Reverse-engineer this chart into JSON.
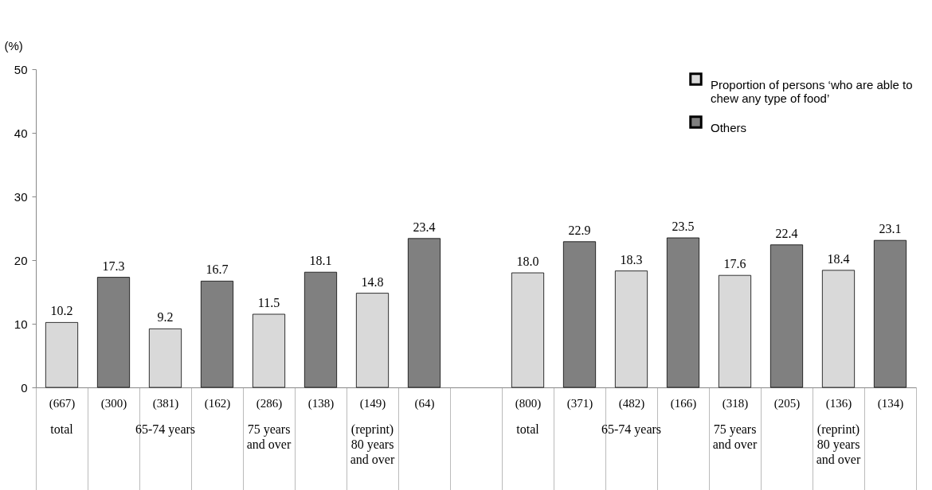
{
  "chart_data": {
    "type": "bar",
    "ylabel": "(%)",
    "categories": [
      "(667)",
      "(300)",
      "(381)",
      "(162)",
      "(286)",
      "(138)",
      "(149)",
      "(64)",
      null,
      "(800)",
      "(371)",
      "(482)",
      "(166)",
      "(318)",
      "(205)",
      "(136)",
      "(134)"
    ],
    "series": [
      {
        "name": "Proportion of persons ‘who are able to chew any type of food’",
        "color": "#d9d9d9",
        "values": [
          10.2,
          null,
          9.2,
          null,
          11.5,
          null,
          14.8,
          null,
          null,
          18.0,
          null,
          18.3,
          null,
          17.6,
          null,
          18.4,
          null
        ],
        "value_labels": [
          "10.2",
          null,
          "9.2",
          null,
          "11.5",
          null,
          "14.8",
          null,
          null,
          "18.0",
          null,
          "18.3",
          null,
          "17.6",
          null,
          "18.4",
          null
        ]
      },
      {
        "name": "Others",
        "color": "#808080",
        "values": [
          null,
          17.3,
          null,
          16.7,
          null,
          18.1,
          null,
          23.4,
          null,
          null,
          22.9,
          null,
          23.5,
          null,
          22.4,
          null,
          23.1
        ],
        "value_labels": [
          null,
          "17.3",
          null,
          "16.7",
          null,
          "18.1",
          null,
          "23.4",
          null,
          null,
          "22.9",
          null,
          "23.5",
          null,
          "22.4",
          null,
          "23.1"
        ]
      }
    ],
    "annotations": [
      "total",
      "65-74 years",
      "75 years and over",
      "(reprint) 80 years and over",
      "total",
      "65-74 years",
      "75 years and over",
      "(reprint) 80 years and over"
    ],
    "ylim": [
      0,
      50
    ],
    "yticks": [
      0,
      10,
      20,
      30,
      40,
      50
    ],
    "grid": false,
    "legend": "top right"
  }
}
